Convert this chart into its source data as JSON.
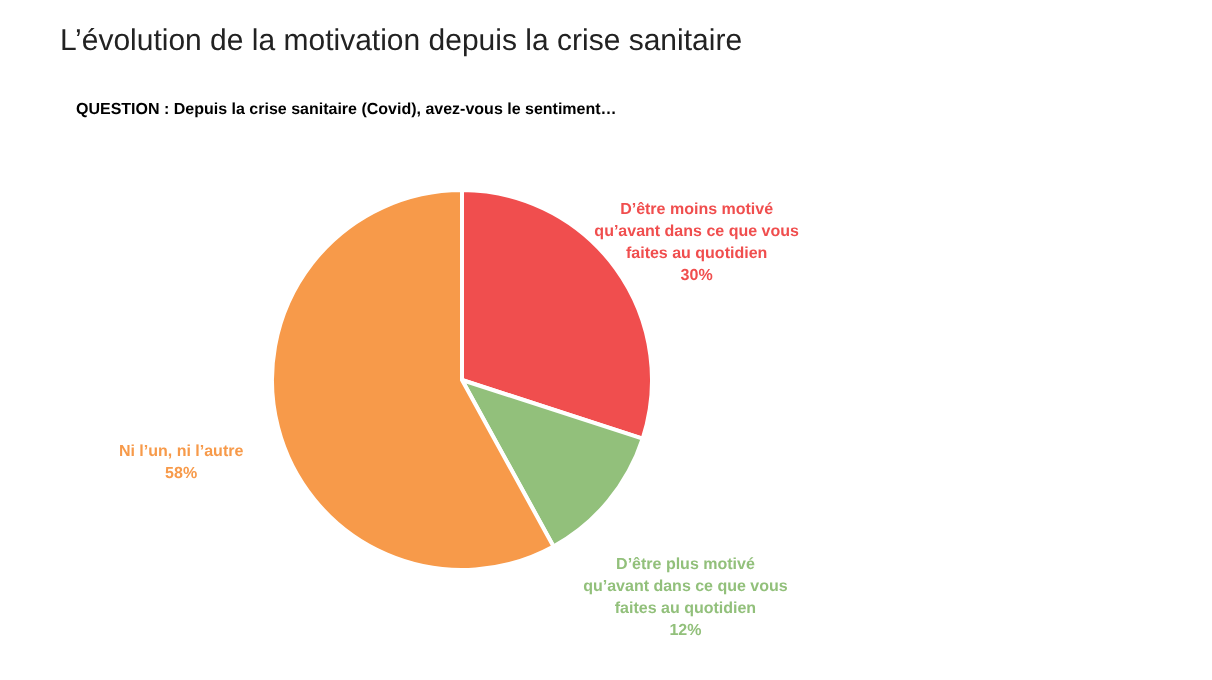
{
  "chart_data": {
    "type": "pie",
    "title": "L’évolution de la motivation depuis la crise sanitaire",
    "subtitle": "QUESTION : Depuis la crise sanitaire (Covid), avez-vous le sentiment…",
    "categories": [
      "D’être moins motivé qu’avant dans ce que vous faites au quotidien",
      "D’être plus motivé qu’avant dans ce que vous faites au quotidien",
      "Ni l’un, ni l’autre"
    ],
    "values": [
      30,
      12,
      58
    ],
    "colors": [
      "#f04e4e",
      "#92c07b",
      "#f79a4a"
    ],
    "value_labels": [
      "30%",
      "12%",
      "58%"
    ]
  }
}
